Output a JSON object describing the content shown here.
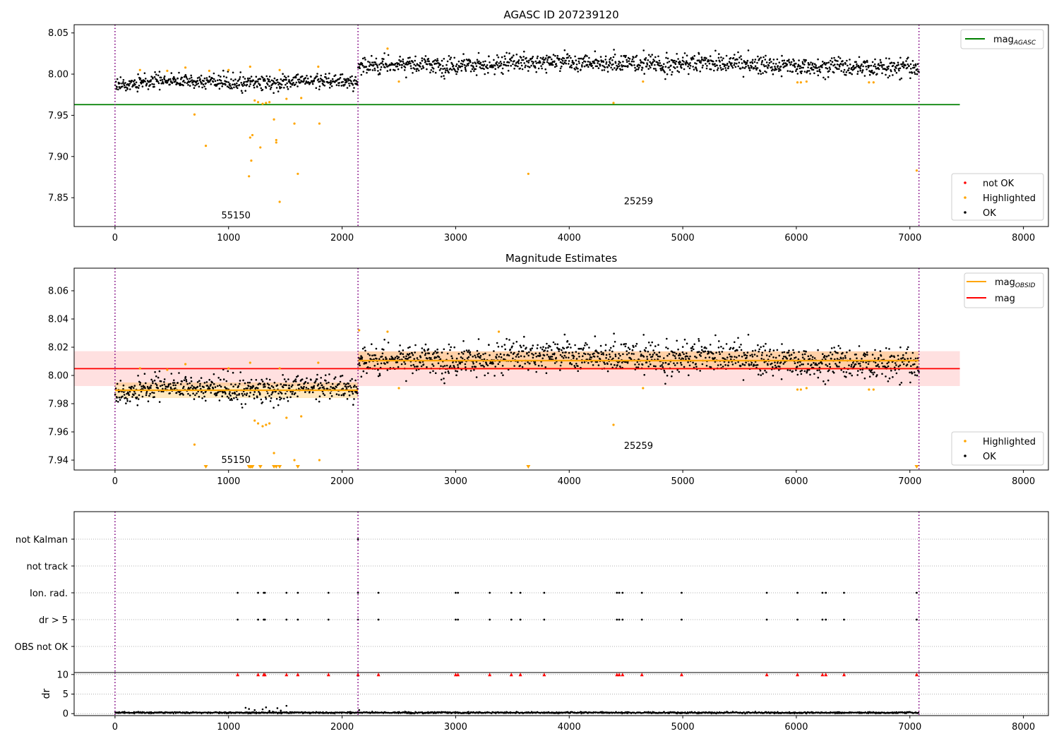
{
  "chart_data": [
    {
      "type": "scatter",
      "title": "AGASC ID 207239120",
      "xlim": [
        -360,
        8220
      ],
      "ylim": [
        7.815,
        8.06
      ],
      "xticks": [
        "0",
        "1000",
        "2000",
        "3000",
        "4000",
        "5000",
        "6000",
        "7000",
        "8000"
      ],
      "yticks": [
        "7.85",
        "7.90",
        "7.95",
        "8.00",
        "8.05"
      ],
      "obs_boundaries": [
        0,
        2140,
        7080
      ],
      "obs_labels": [
        {
          "text": "55150",
          "x": 1065,
          "y": 7.825
        },
        {
          "text": "25259",
          "x": 4610,
          "y": 7.842
        }
      ],
      "legends": [
        {
          "placement": "top-right",
          "entries": [
            {
              "name": "mag",
              "sub": "AGASC",
              "color": "#008000",
              "kind": "line"
            }
          ]
        },
        {
          "placement": "bottom-right",
          "entries": [
            {
              "name": "not OK",
              "color": "#ff0000",
              "kind": "dot"
            },
            {
              "name": "Highlighted",
              "color": "#ffa500",
              "kind": "dot"
            },
            {
              "name": "OK",
              "color": "#000000",
              "kind": "dot"
            }
          ]
        }
      ],
      "series": [
        {
          "name": "mag",
          "kind": "hline",
          "color": "#008000",
          "x": [
            -360,
            7440
          ],
          "y": 7.963
        },
        {
          "name": "OK",
          "kind": "cloud",
          "color": "#000000",
          "segments": [
            {
              "x": [
                0,
                2140
              ],
              "mean": 7.989,
              "spread": 0.005
            },
            {
              "x": [
                2140,
                7080
              ],
              "mean": 8.011,
              "spread": 0.006
            }
          ]
        },
        {
          "name": "Highlighted",
          "kind": "points",
          "color": "#ffa500",
          "points": [
            [
              220,
              8.005
            ],
            [
              460,
              8.004
            ],
            [
              620,
              8.008
            ],
            [
              700,
              7.951
            ],
            [
              800,
              7.913
            ],
            [
              830,
              8.004
            ],
            [
              1000,
              8.005
            ],
            [
              1180,
              7.876
            ],
            [
              1190,
              8.009
            ],
            [
              1190,
              7.923
            ],
            [
              1200,
              7.895
            ],
            [
              1210,
              7.926
            ],
            [
              1230,
              7.968
            ],
            [
              1260,
              7.966
            ],
            [
              1280,
              7.911
            ],
            [
              1300,
              7.964
            ],
            [
              1330,
              7.965
            ],
            [
              1360,
              7.966
            ],
            [
              1400,
              7.945
            ],
            [
              1420,
              7.92
            ],
            [
              1420,
              7.917
            ],
            [
              1450,
              8.005
            ],
            [
              1450,
              7.845
            ],
            [
              1510,
              7.97
            ],
            [
              1580,
              7.94
            ],
            [
              1610,
              7.879
            ],
            [
              1640,
              7.971
            ],
            [
              1790,
              8.009
            ],
            [
              1800,
              7.94
            ],
            [
              2400,
              8.031
            ],
            [
              2500,
              7.991
            ],
            [
              3640,
              7.879
            ],
            [
              4390,
              7.965
            ],
            [
              4650,
              7.991
            ],
            [
              6010,
              7.99
            ],
            [
              6040,
              7.99
            ],
            [
              6090,
              7.991
            ],
            [
              6640,
              7.99
            ],
            [
              6680,
              7.99
            ],
            [
              7060,
              7.883
            ]
          ]
        }
      ]
    },
    {
      "type": "scatter",
      "title": "Magnitude Estimates",
      "xlim": [
        -360,
        8220
      ],
      "ylim": [
        7.933,
        8.076
      ],
      "xticks": [
        "0",
        "1000",
        "2000",
        "3000",
        "4000",
        "5000",
        "6000",
        "7000",
        "8000"
      ],
      "yticks": [
        "7.94",
        "7.96",
        "7.98",
        "8.00",
        "8.02",
        "8.04",
        "8.06"
      ],
      "obs_boundaries": [
        0,
        2140,
        7080
      ],
      "obs_labels": [
        {
          "text": "55150",
          "x": 1065,
          "y": 7.938
        },
        {
          "text": "25259",
          "x": 4610,
          "y": 7.948
        }
      ],
      "legends": [
        {
          "placement": "top-right",
          "entries": [
            {
              "name": "mag",
              "sub": "OBSID",
              "color": "#ffa500",
              "kind": "line"
            },
            {
              "name": "mag",
              "sub": "",
              "color": "#ff0000",
              "kind": "line"
            }
          ]
        },
        {
          "placement": "bottom-right",
          "entries": [
            {
              "name": "Highlighted",
              "color": "#ffa500",
              "kind": "dot"
            },
            {
              "name": "OK",
              "color": "#000000",
              "kind": "dot"
            }
          ]
        }
      ],
      "bands": [
        {
          "color": "#ff0000",
          "opacity": 0.12,
          "x": [
            -360,
            7440
          ],
          "y": [
            7.9925,
            8.0172
          ]
        },
        {
          "color": "#ffa500",
          "opacity": 0.25,
          "x": [
            2140,
            7080
          ],
          "y": [
            8.004,
            8.017
          ]
        },
        {
          "color": "#ffa500",
          "opacity": 0.25,
          "x": [
            0,
            2140
          ],
          "y": [
            7.984,
            7.995
          ]
        }
      ],
      "series": [
        {
          "name": "mag",
          "kind": "hline",
          "color": "#ff0000",
          "x": [
            -360,
            7440
          ],
          "y": 8.0048
        },
        {
          "name": "mag OBSID",
          "kind": "steps",
          "color": "#ffa500",
          "segments": [
            {
              "x": [
                0,
                2140
              ],
              "y": 7.9895
            },
            {
              "x": [
                2140,
                7080
              ],
              "y": 8.0105
            }
          ]
        },
        {
          "name": "OK",
          "kind": "cloud",
          "color": "#000000",
          "segments": [
            {
              "x": [
                0,
                2140
              ],
              "mean": 7.989,
              "spread": 0.005
            },
            {
              "x": [
                2140,
                7080
              ],
              "mean": 8.011,
              "spread": 0.006
            }
          ]
        },
        {
          "name": "Highlighted",
          "kind": "points",
          "color": "#ffa500",
          "points": [
            [
              220,
              8.005
            ],
            [
              460,
              8.004
            ],
            [
              620,
              8.008
            ],
            [
              700,
              7.951
            ],
            [
              1000,
              8.005
            ],
            [
              1190,
              8.009
            ],
            [
              1230,
              7.968
            ],
            [
              1260,
              7.966
            ],
            [
              1300,
              7.964
            ],
            [
              1330,
              7.965
            ],
            [
              1360,
              7.966
            ],
            [
              1400,
              7.945
            ],
            [
              1450,
              8.005
            ],
            [
              1510,
              7.97
            ],
            [
              1580,
              7.94
            ],
            [
              1640,
              7.971
            ],
            [
              1790,
              8.009
            ],
            [
              1800,
              7.94
            ],
            [
              2150,
              8.032
            ],
            [
              2400,
              8.031
            ],
            [
              2500,
              7.991
            ],
            [
              3380,
              8.031
            ],
            [
              4390,
              7.965
            ],
            [
              4650,
              7.991
            ],
            [
              6010,
              7.99
            ],
            [
              6040,
              7.99
            ],
            [
              6090,
              7.991
            ],
            [
              6640,
              7.99
            ],
            [
              6680,
              7.99
            ]
          ]
        },
        {
          "name": "Highlighted (out of range)",
          "kind": "markers",
          "color": "#ffa500",
          "points": [
            [
              800,
              7.935
            ],
            [
              1180,
              7.935
            ],
            [
              1190,
              7.935
            ],
            [
              1200,
              7.935
            ],
            [
              1210,
              7.935
            ],
            [
              1280,
              7.935
            ],
            [
              1400,
              7.935
            ],
            [
              1420,
              7.935
            ],
            [
              1450,
              7.935
            ],
            [
              1610,
              7.935
            ],
            [
              3640,
              7.935
            ],
            [
              7060,
              7.935
            ]
          ]
        }
      ]
    },
    {
      "type": "scatter",
      "title": "",
      "xlim": [
        -360,
        8220
      ],
      "categories": [
        "not Kalman",
        "not track",
        "Ion. rad.",
        "dr > 5",
        "OBS not OK"
      ],
      "obs_boundaries": [
        0,
        2140,
        7080
      ],
      "flag_points": {
        "not Kalman": [
          2140
        ],
        "Ion. rad.": [
          1080,
          1260,
          1310,
          1320,
          1510,
          1610,
          1880,
          2140,
          2320,
          3000,
          3020,
          3300,
          3490,
          3570,
          3780,
          4420,
          4440,
          4470,
          4640,
          4990,
          5740,
          6010,
          6230,
          6260,
          6420,
          7060
        ],
        "dr > 5": [
          1080,
          1260,
          1310,
          1320,
          1510,
          1610,
          1880,
          2140,
          2320,
          3000,
          3020,
          3300,
          3490,
          3570,
          3780,
          4420,
          4440,
          4470,
          4640,
          4990,
          5740,
          6010,
          6230,
          6260,
          6420,
          7060
        ]
      }
    },
    {
      "type": "scatter",
      "title": "",
      "ylabel": "dr",
      "xlim": [
        -360,
        8220
      ],
      "ylim": [
        -0.5,
        10.5
      ],
      "xticks": [
        "0",
        "1000",
        "2000",
        "3000",
        "4000",
        "5000",
        "6000",
        "7000",
        "8000"
      ],
      "yticks": [
        "0",
        "5",
        "10"
      ],
      "obs_boundaries": [
        0,
        2140,
        7080
      ],
      "series": [
        {
          "name": "OK",
          "kind": "cloud",
          "color": "#000000",
          "segments": [
            {
              "x": [
                0,
                2140
              ],
              "mean": 0.25,
              "spread": 0.2
            },
            {
              "x": [
                2140,
                7080
              ],
              "mean": 0.25,
              "spread": 0.2
            }
          ]
        },
        {
          "name": "dr elevated",
          "kind": "points",
          "color": "#000000",
          "points": [
            [
              1150,
              1.5
            ],
            [
              1180,
              1.2
            ],
            [
              1230,
              0.9
            ],
            [
              1300,
              1.1
            ],
            [
              1330,
              1.6
            ],
            [
              1360,
              0.7
            ],
            [
              1390,
              0.5
            ],
            [
              1430,
              1.4
            ],
            [
              1460,
              0.8
            ],
            [
              1510,
              2.0
            ],
            [
              2150,
              0.9
            ]
          ]
        },
        {
          "name": "dr > 10",
          "kind": "markers",
          "color": "#ff0000",
          "x": [
            1080,
            1260,
            1310,
            1320,
            1510,
            1610,
            1880,
            2140,
            2320,
            3000,
            3020,
            3300,
            3490,
            3570,
            3780,
            4420,
            4440,
            4470,
            4640,
            4990,
            5740,
            6010,
            6230,
            6260,
            6420,
            7060
          ],
          "y": 10
        }
      ]
    }
  ]
}
